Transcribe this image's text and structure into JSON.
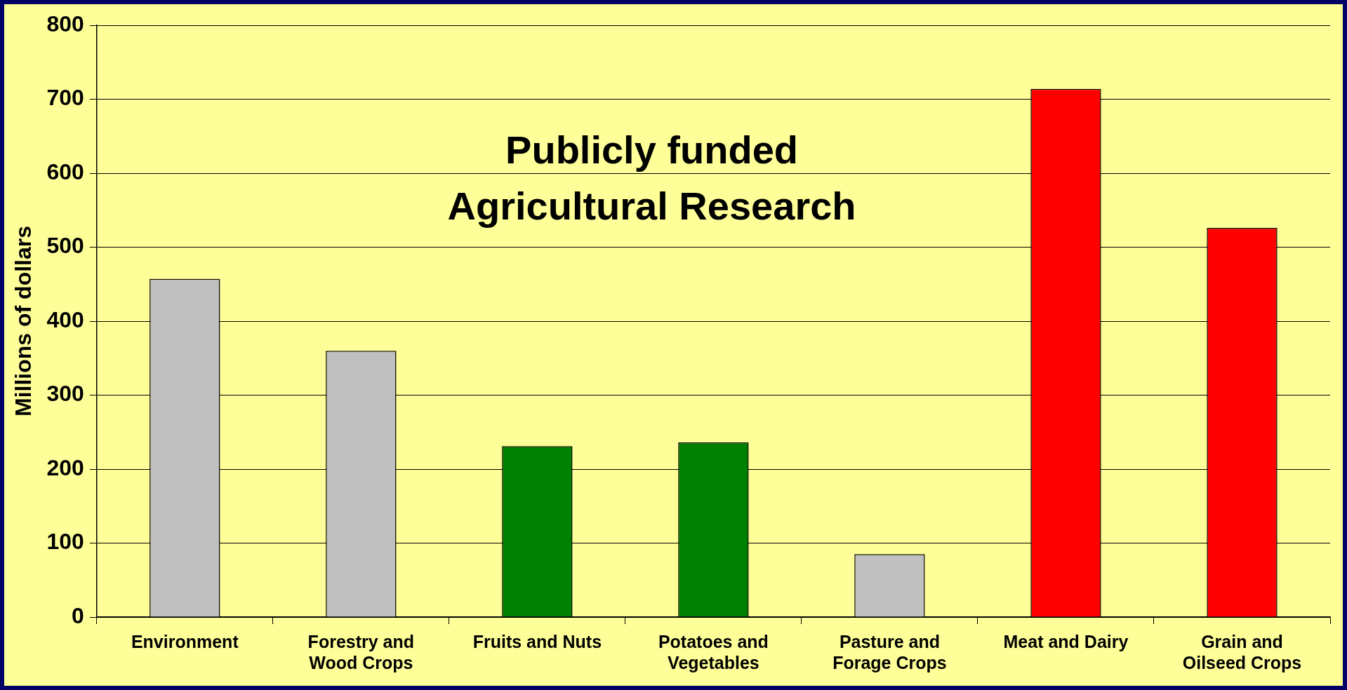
{
  "chart_data": {
    "type": "bar",
    "title": "Publicly funded Agricultural Research",
    "ylabel": "Millions of dollars",
    "categories": [
      "Environment",
      "Forestry and Wood Crops",
      "Fruits and Nuts",
      "Potatoes and Vegetables",
      "Pasture and Forage Crops",
      "Meat and Dairy",
      "Grain and Oilseed Crops"
    ],
    "values": [
      457,
      360,
      231,
      236,
      85,
      714,
      526
    ],
    "colors": [
      "#c0c0c0",
      "#c0c0c0",
      "#008000",
      "#008000",
      "#c0c0c0",
      "#ff0000",
      "#ff0000"
    ],
    "ylim": [
      0,
      800
    ],
    "yticks": [
      0,
      100,
      200,
      300,
      400,
      500,
      600,
      700,
      800
    ],
    "grid": "y",
    "legend": false
  }
}
